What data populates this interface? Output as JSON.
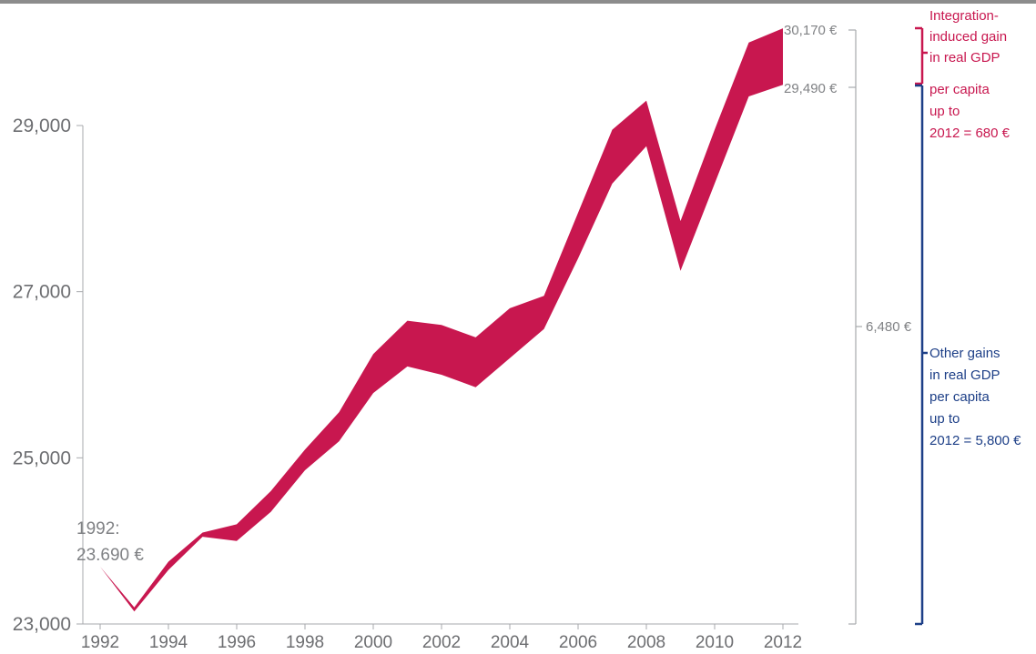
{
  "chart_data": {
    "type": "area",
    "title": "",
    "xlabel": "",
    "ylabel": "",
    "x_tick_labels": [
      "1992",
      "1994",
      "1996",
      "1998",
      "2000",
      "2002",
      "2004",
      "2006",
      "2008",
      "2010",
      "2012"
    ],
    "y_tick_labels": [
      "23,000",
      "25,000",
      "27,000",
      "29,000"
    ],
    "xlim": [
      1992,
      2012
    ],
    "ylim": [
      23000,
      29000
    ],
    "grid": false,
    "band_color": "#c8174f",
    "series": [
      {
        "x": [
          1992,
          1993,
          1994,
          1995,
          1996,
          1997,
          1998,
          1999,
          2000,
          2001,
          2002,
          2003,
          2004,
          2005,
          2006,
          2007,
          2008,
          2009,
          2010,
          2011,
          2012
        ],
        "values": [
          23690,
          23200,
          23750,
          24100,
          24200,
          24600,
          25100,
          25550,
          26250,
          26650,
          26600,
          26450,
          26800,
          26950,
          27950,
          28950,
          29300,
          27850,
          28950,
          30000,
          30170
        ]
      },
      {
        "x": [
          1992,
          1993,
          1994,
          1995,
          1996,
          1997,
          1998,
          1999,
          2000,
          2001,
          2002,
          2003,
          2004,
          2005,
          2006,
          2007,
          2008,
          2009,
          2010,
          2011,
          2012
        ],
        "values": [
          23690,
          23150,
          23650,
          24050,
          24000,
          24350,
          24850,
          25200,
          25780,
          26100,
          26000,
          25850,
          26200,
          26550,
          27400,
          28300,
          28750,
          27250,
          28300,
          29350,
          29490
        ]
      }
    ],
    "start_label": {
      "line1": "1992:",
      "line2": "23.690 €"
    },
    "right_scale": {
      "top_label": "30,170 €",
      "bottom_label": "29,490 €",
      "mid_label": "6,480 €",
      "color": "#808285"
    },
    "annotations": {
      "integration": {
        "lines": [
          "Integration-",
          "induced gain",
          "in real GDP",
          "per capita",
          "up to",
          "2012 = 680 €"
        ],
        "color": "#c8174f"
      },
      "other": {
        "lines": [
          "Other gains",
          "in real GDP",
          "per capita",
          "up to",
          "2012 = 5,800 €"
        ],
        "color": "#1d3f87"
      }
    }
  }
}
